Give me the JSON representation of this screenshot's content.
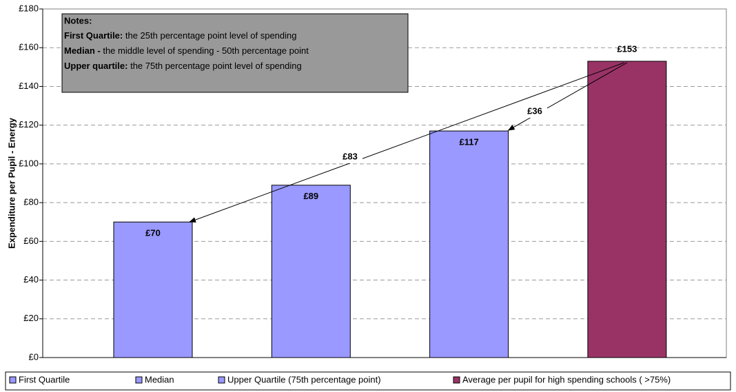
{
  "chart_data": {
    "type": "bar",
    "y_label": "Expenditure per Pupil - Energy",
    "categories": [
      "First Quartile",
      "Median",
      "Upper Quartile (75th percentage point)",
      "Average per pupil for high spending schools ( >75%)"
    ],
    "values": [
      70,
      89,
      117,
      153
    ],
    "value_labels": [
      "£70",
      "£89",
      "£117",
      "£153"
    ],
    "colors": [
      "#9999ff",
      "#9999ff",
      "#9999ff",
      "#993366"
    ],
    "ylim": [
      0,
      180
    ],
    "yticks": [
      {
        "value": 0,
        "label": "£0"
      },
      {
        "value": 20,
        "label": "£20"
      },
      {
        "value": 40,
        "label": "£40"
      },
      {
        "value": 60,
        "label": "£60"
      },
      {
        "value": 80,
        "label": "£80"
      },
      {
        "value": 100,
        "label": "£100"
      },
      {
        "value": 120,
        "label": "£120"
      },
      {
        "value": 140,
        "label": "£140"
      },
      {
        "value": 160,
        "label": "£160"
      },
      {
        "value": 180,
        "label": "£180"
      }
    ],
    "grid": true,
    "annotations": [
      {
        "text": "£83",
        "color": "#008000"
      },
      {
        "text": "£36",
        "color": "#008000"
      }
    ],
    "notes": {
      "title": "Notes:",
      "lines": [
        {
          "bold": "First Quartile:",
          "text": " the 25th percentage point level of spending"
        },
        {
          "bold": "Median - ",
          "text": "the middle level of spending - 50th percentage point"
        },
        {
          "bold": "Upper quartile:",
          "text": " the 75th percentage point level of spending"
        }
      ]
    },
    "legend": "bottom"
  }
}
